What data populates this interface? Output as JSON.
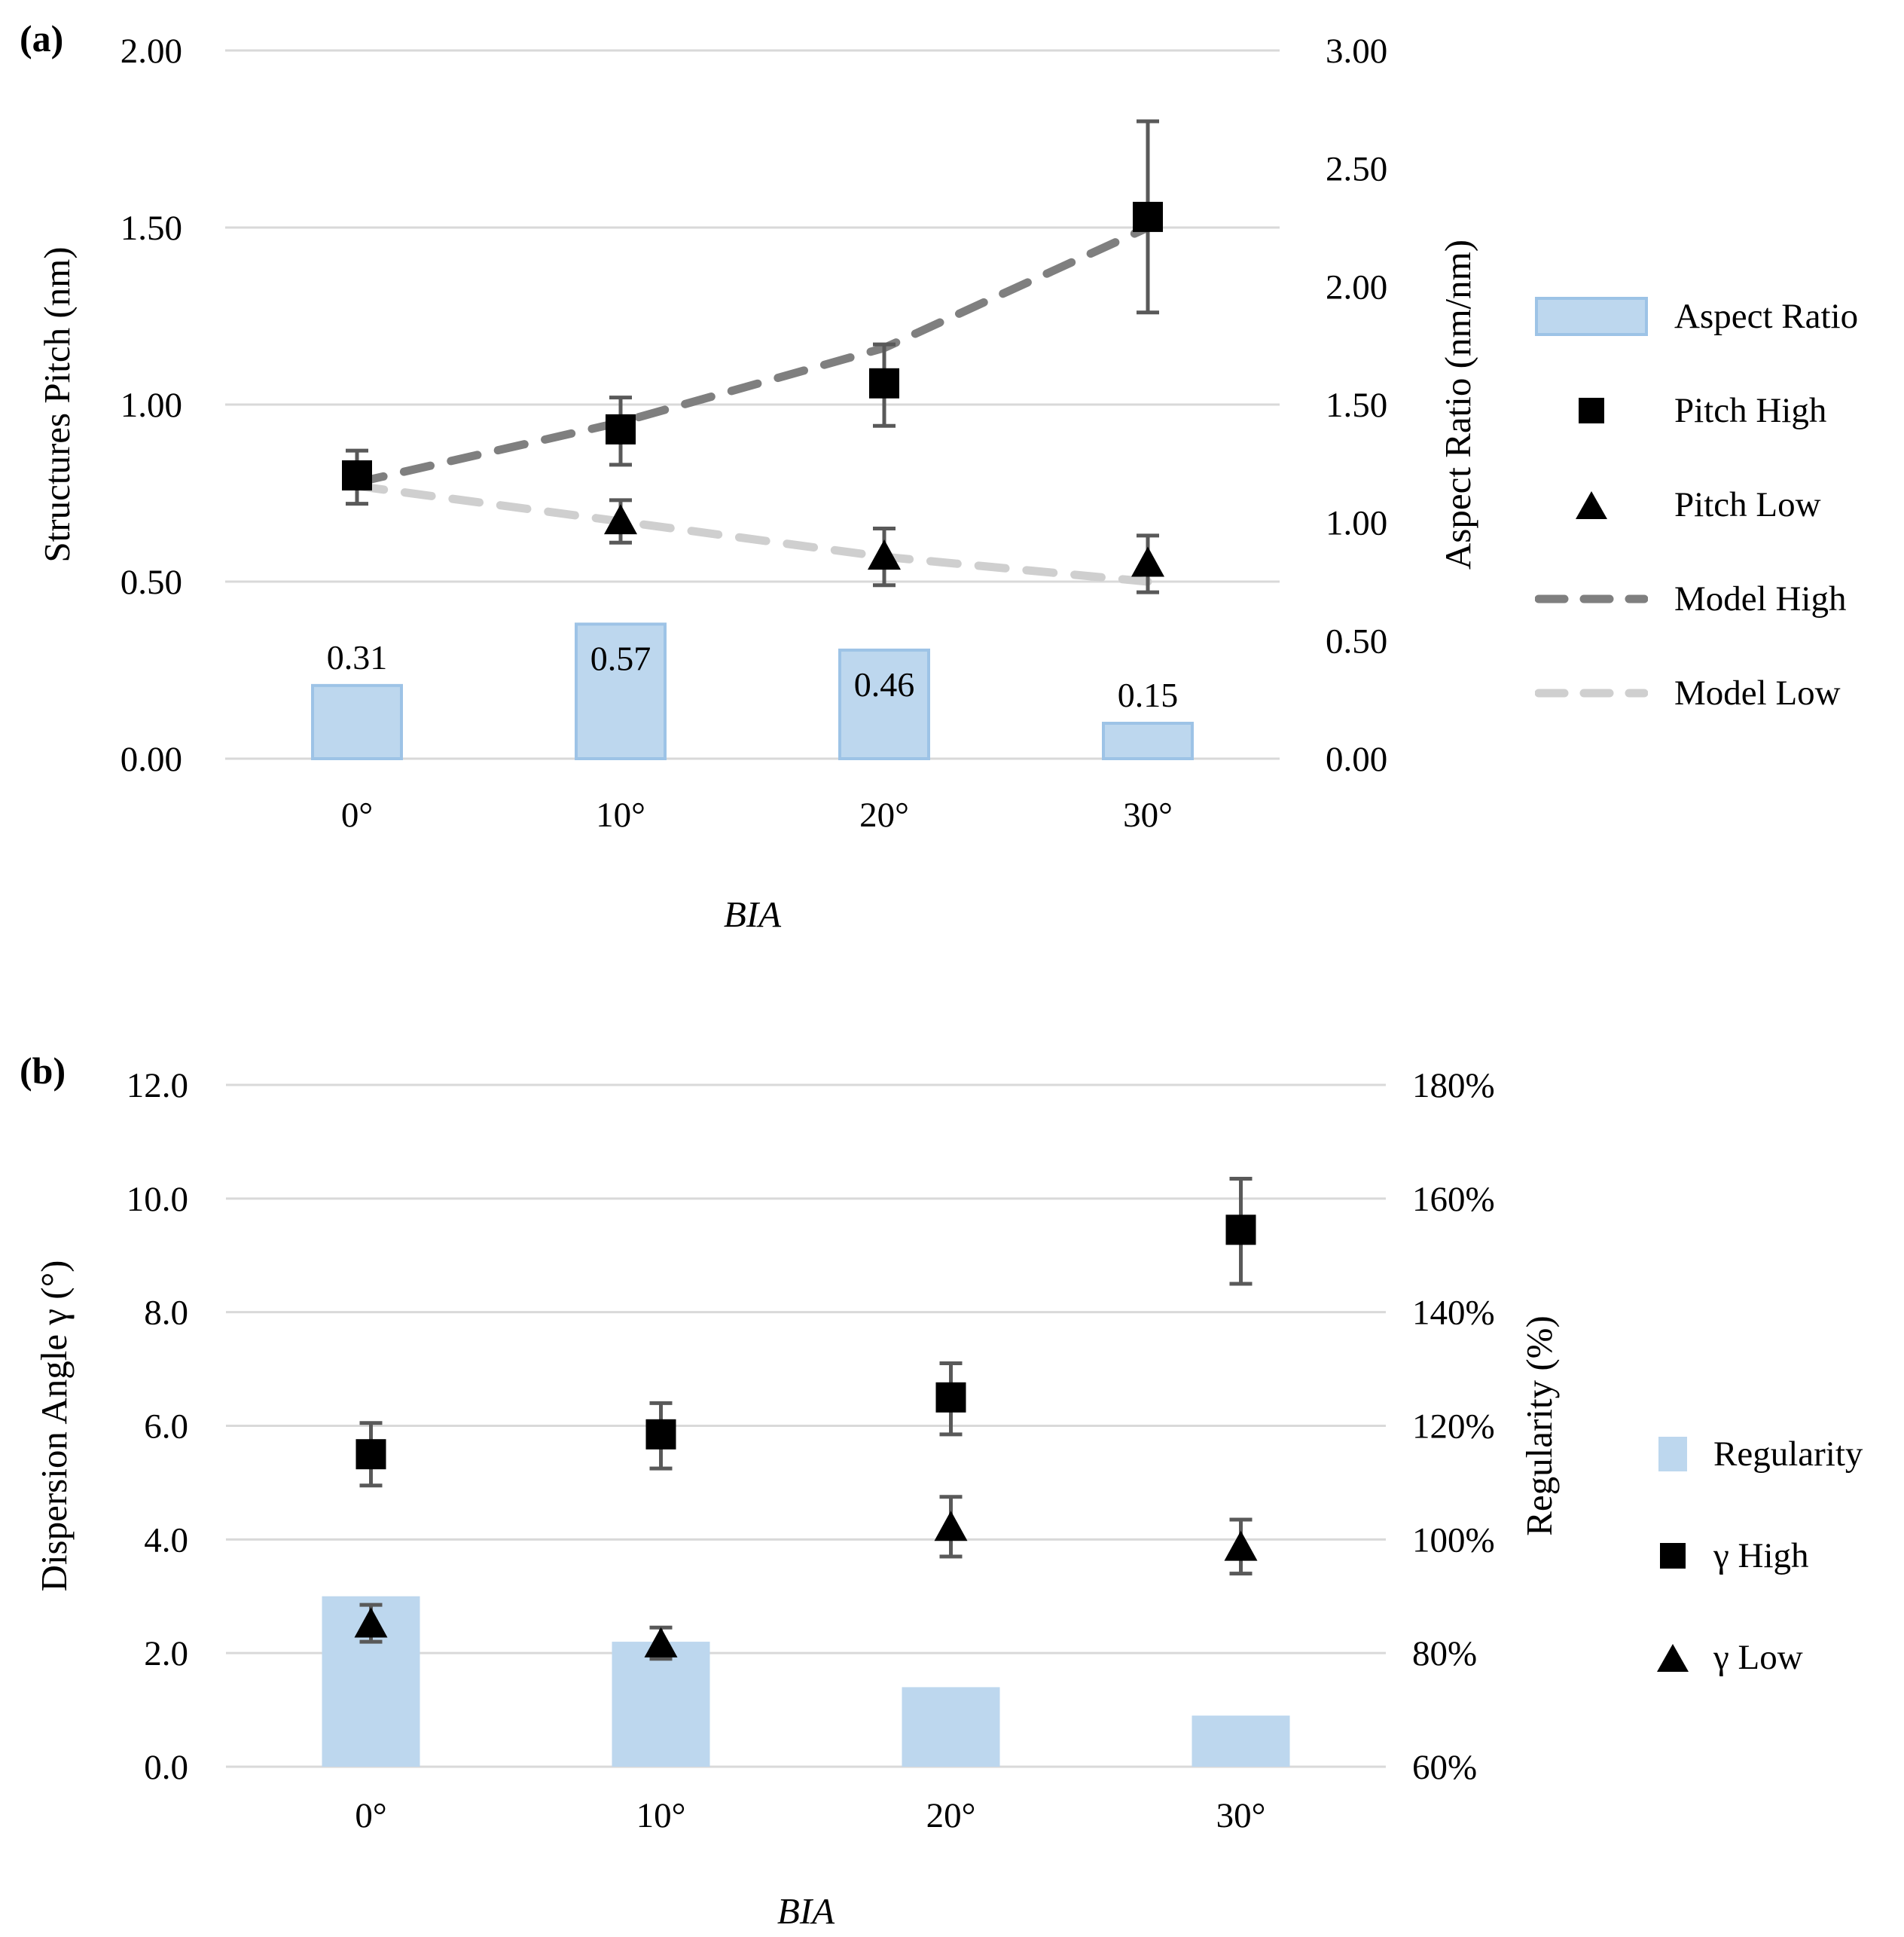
{
  "panel_a_label": "(a)",
  "panel_b_label": "(b)",
  "colors": {
    "bar_fill": "#BDD7EE",
    "bar_stroke": "#9DC3E6",
    "gridline": "#D9D9D9",
    "error_bar": "#595959",
    "marker": "#000000",
    "model_high": "#7F7F7F",
    "model_low": "#CFCFCF"
  },
  "chart_data": [
    {
      "panel": "a",
      "type": "bar+scatter+line",
      "categories": [
        "0°",
        "10°",
        "20°",
        "30°"
      ],
      "x_axis_title": "BIA",
      "left_axis": {
        "title": "Structures Pitch (nm)",
        "min": 0,
        "max": 2,
        "tick_labels": [
          "2.00",
          "1.50",
          "1.00",
          "0.50",
          "0.00"
        ]
      },
      "right_axis": {
        "title": "Aspect Ratio (nm/nm)",
        "min": 0,
        "max": 3,
        "tick_labels": [
          "3.00",
          "2.50",
          "2.00",
          "1.50",
          "1.00",
          "0.50",
          "0.00"
        ]
      },
      "bar_series": {
        "name": "Aspect Ratio",
        "axis": "right",
        "values": [
          0.31,
          0.57,
          0.46,
          0.15
        ],
        "data_labels": [
          "0.31",
          "0.57",
          "0.46",
          "0.15"
        ],
        "bordered": true
      },
      "scatter_series": [
        {
          "name": "Pitch High",
          "marker": "square",
          "points": [
            {
              "category": "0°",
              "value": 0.8,
              "err_low": 0.72,
              "err_high": 0.87
            },
            {
              "category": "10°",
              "value": 0.93,
              "err_low": 0.83,
              "err_high": 1.02
            },
            {
              "category": "20°",
              "value": 1.06,
              "err_low": 0.94,
              "err_high": 1.17
            },
            {
              "category": "30°",
              "value": 1.53,
              "err_low": 1.26,
              "err_high": 1.8
            }
          ]
        },
        {
          "name": "Pitch Low",
          "marker": "triangle",
          "points": [
            {
              "category": "10°",
              "value": 0.67,
              "err_low": 0.61,
              "err_high": 0.73
            },
            {
              "category": "20°",
              "value": 0.57,
              "err_low": 0.49,
              "err_high": 0.65
            },
            {
              "category": "30°",
              "value": 0.55,
              "err_low": 0.47,
              "err_high": 0.63
            }
          ]
        }
      ],
      "model_series": [
        {
          "name": "Model High",
          "color_key": "model_high",
          "values": [
            0.78,
            0.95,
            1.16,
            1.5
          ]
        },
        {
          "name": "Model Low",
          "color_key": "model_low",
          "values": [
            0.77,
            0.67,
            0.57,
            0.5
          ]
        }
      ],
      "legend": [
        {
          "label": "Aspect Ratio",
          "swatch": "bar-bordered"
        },
        {
          "label": "Pitch High",
          "swatch": "square"
        },
        {
          "label": "Pitch Low",
          "swatch": "triangle"
        },
        {
          "label": "Model High",
          "swatch": "dash-dark"
        },
        {
          "label": "Model Low",
          "swatch": "dash-light"
        }
      ]
    },
    {
      "panel": "b",
      "type": "bar+scatter",
      "categories": [
        "0°",
        "10°",
        "20°",
        "30°"
      ],
      "x_axis_title": "BIA",
      "left_axis": {
        "title": "Dispersion Angle γ (°)",
        "min": 0,
        "max": 12,
        "tick_labels": [
          "12.0",
          "10.0",
          "8.0",
          "6.0",
          "4.0",
          "2.0",
          "0.0"
        ]
      },
      "right_axis": {
        "title": "Regularity (%)",
        "min": 60,
        "max": 180,
        "tick_labels": [
          "180%",
          "160%",
          "140%",
          "120%",
          "100%",
          "80%",
          "60%"
        ]
      },
      "bar_series": {
        "name": "Regularity",
        "axis": "right",
        "values": [
          90,
          82,
          74,
          69
        ],
        "data_labels": null,
        "bordered": false
      },
      "scatter_series": [
        {
          "name": "γ High",
          "marker": "square",
          "points": [
            {
              "category": "0°",
              "value": 5.5,
              "err_low": 4.95,
              "err_high": 6.05
            },
            {
              "category": "10°",
              "value": 5.85,
              "err_low": 5.25,
              "err_high": 6.4
            },
            {
              "category": "20°",
              "value": 6.5,
              "err_low": 5.85,
              "err_high": 7.1
            },
            {
              "category": "30°",
              "value": 9.45,
              "err_low": 8.5,
              "err_high": 10.35
            }
          ]
        },
        {
          "name": "γ Low",
          "marker": "triangle",
          "points": [
            {
              "category": "0°",
              "value": 2.5,
              "err_low": 2.2,
              "err_high": 2.85
            },
            {
              "category": "10°",
              "value": 2.15,
              "err_low": 1.9,
              "err_high": 2.45
            },
            {
              "category": "20°",
              "value": 4.2,
              "err_low": 3.7,
              "err_high": 4.75
            },
            {
              "category": "30°",
              "value": 3.85,
              "err_low": 3.4,
              "err_high": 4.35
            }
          ]
        }
      ],
      "model_series": [],
      "legend": [
        {
          "label": "Regularity",
          "swatch": "bar-plain"
        },
        {
          "label": "γ High",
          "swatch": "square"
        },
        {
          "label": "γ Low",
          "swatch": "triangle"
        }
      ]
    }
  ]
}
